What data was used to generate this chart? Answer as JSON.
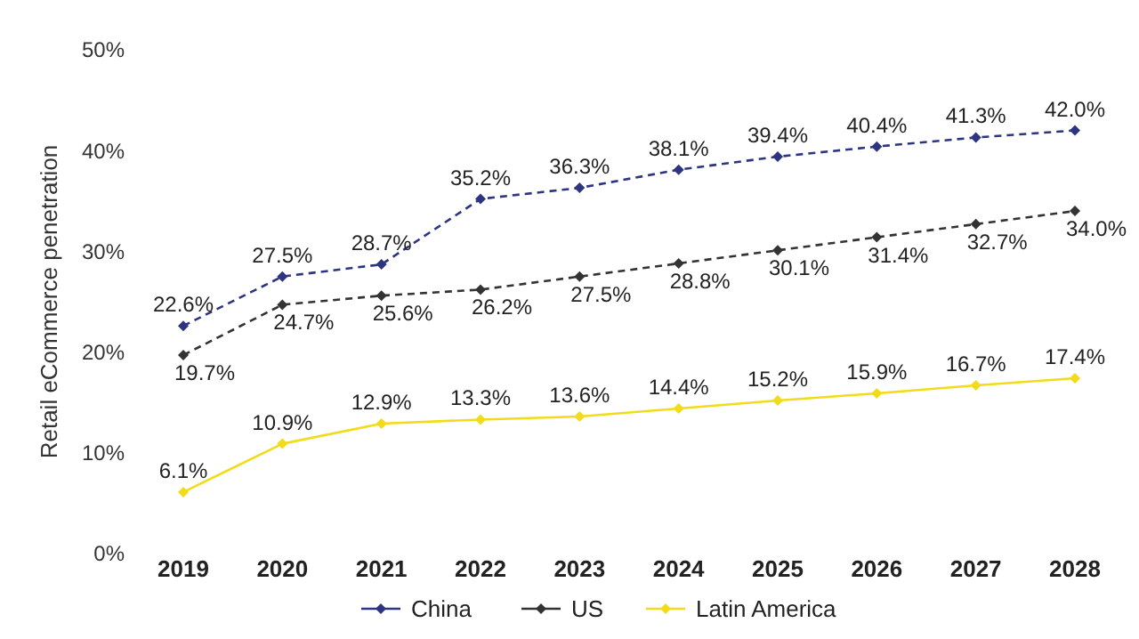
{
  "chart_data": {
    "type": "line",
    "ylabel": "Retail eCommerce penetration",
    "categories": [
      "2019",
      "2020",
      "2021",
      "2022",
      "2023",
      "2024",
      "2025",
      "2026",
      "2027",
      "2028"
    ],
    "series": [
      {
        "name": "China",
        "color": "#2e3580",
        "line_style": "dashed",
        "values": [
          22.6,
          27.5,
          28.7,
          35.2,
          36.3,
          38.1,
          39.4,
          40.4,
          41.3,
          42.0
        ],
        "value_labels": [
          "22.6%",
          "27.5%",
          "28.7%",
          "35.2%",
          "36.3%",
          "38.1%",
          "39.4%",
          "40.4%",
          "41.3%",
          "42.0%"
        ]
      },
      {
        "name": "US",
        "color": "#333333",
        "line_style": "dashed",
        "values": [
          19.7,
          24.7,
          25.6,
          26.2,
          27.5,
          28.8,
          30.1,
          31.4,
          32.7,
          34.0
        ],
        "value_labels": [
          "19.7%",
          "24.7%",
          "25.6%",
          "26.2%",
          "27.5%",
          "28.8%",
          "30.1%",
          "31.4%",
          "32.7%",
          "34.0%"
        ]
      },
      {
        "name": "Latin America",
        "color": "#f2dc1a",
        "line_style": "solid",
        "values": [
          6.1,
          10.9,
          12.9,
          13.3,
          13.6,
          14.4,
          15.2,
          15.9,
          16.7,
          17.4
        ],
        "value_labels": [
          "6.1%",
          "10.9%",
          "12.9%",
          "13.3%",
          "13.6%",
          "14.4%",
          "15.2%",
          "15.9%",
          "16.7%",
          "17.4%"
        ]
      }
    ],
    "ylim": [
      0,
      50
    ],
    "yticks": [
      {
        "value": 0,
        "label": "0%"
      },
      {
        "value": 10,
        "label": "10%"
      },
      {
        "value": 20,
        "label": "20%"
      },
      {
        "value": 30,
        "label": "30%"
      },
      {
        "value": 40,
        "label": "40%"
      },
      {
        "value": 50,
        "label": "50%"
      }
    ],
    "marker": "diamond",
    "legend": "bottom",
    "grid": false
  }
}
